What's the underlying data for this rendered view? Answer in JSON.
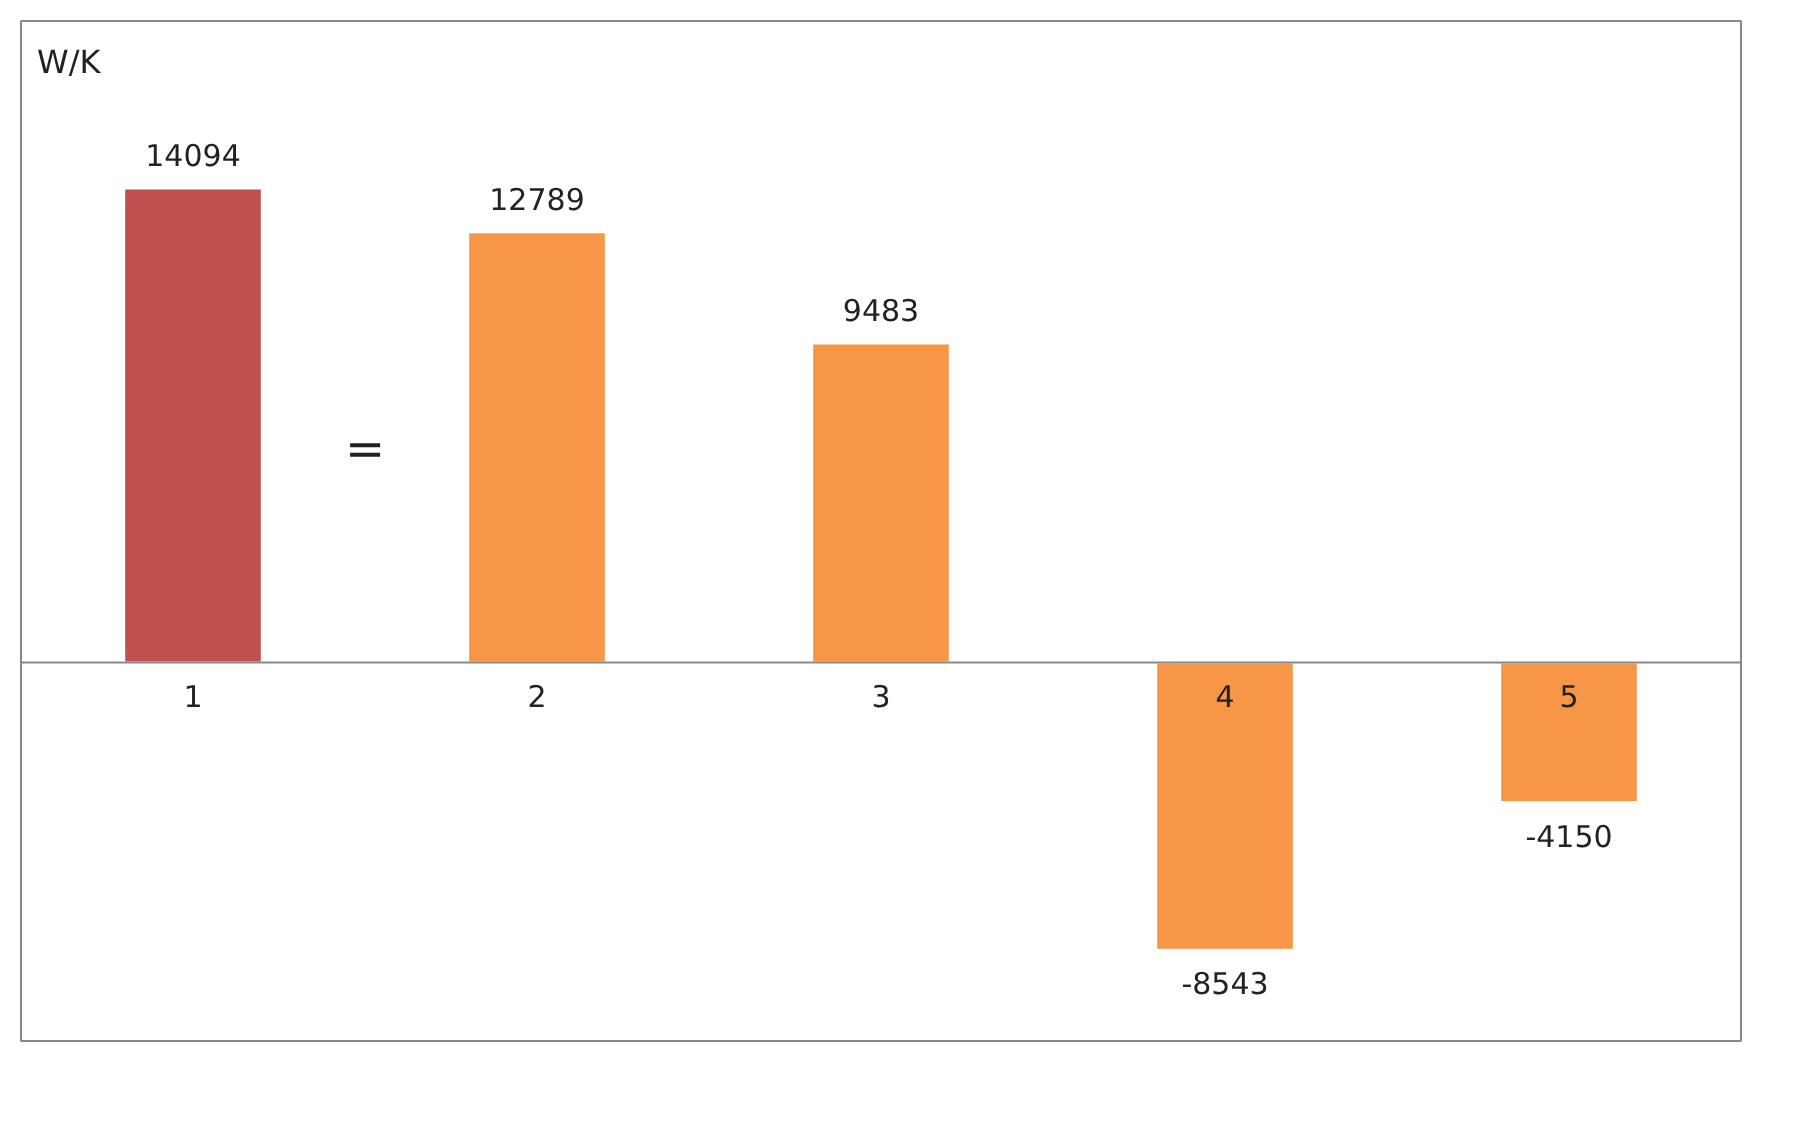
{
  "chart_data": {
    "type": "bar",
    "ylabel": "W/K",
    "categories": [
      "1",
      "2",
      "3",
      "4",
      "5"
    ],
    "values": [
      14094,
      12789,
      9483,
      -8543,
      -4150
    ],
    "colors": [
      "#c0504d",
      "#f79646",
      "#f79646",
      "#f79646",
      "#f79646"
    ],
    "data_labels": true,
    "grid": false,
    "annotations": [
      "="
    ]
  }
}
